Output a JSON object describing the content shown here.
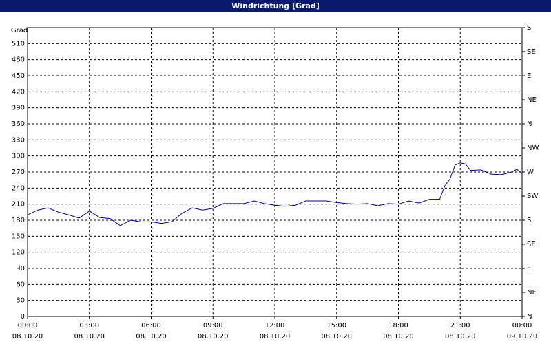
{
  "chart_data": {
    "type": "line",
    "title": "Windrichtung [Grad]",
    "y_label": "Grad",
    "x": [
      0,
      0.5,
      1,
      1.5,
      2,
      2.5,
      3,
      3.5,
      4,
      4.5,
      5,
      5.5,
      6,
      6.5,
      7,
      7.5,
      8,
      8.5,
      9,
      9.5,
      10,
      10.5,
      11,
      11.5,
      12,
      12.5,
      13,
      13.5,
      14,
      14.5,
      15,
      15.5,
      16,
      16.5,
      17,
      17.5,
      18,
      18.5,
      19,
      19.5,
      20,
      20.25,
      20.5,
      20.75,
      21,
      21.25,
      21.5,
      22,
      22.5,
      23,
      23.5,
      23.75,
      24
    ],
    "values": [
      190,
      199,
      203,
      195,
      190,
      184,
      197,
      185,
      183,
      170,
      180,
      177,
      177,
      174,
      177,
      193,
      203,
      199,
      202,
      211,
      211,
      211,
      216,
      211,
      208,
      206,
      208,
      216,
      216,
      216,
      213,
      211,
      210,
      211,
      207,
      211,
      210,
      216,
      212,
      219,
      219,
      244,
      257,
      283,
      287,
      285,
      273,
      274,
      266,
      265,
      270,
      275,
      267
    ],
    "color": "#00008b",
    "xlim": [
      0,
      24
    ],
    "xticks": [
      {
        "value": 0,
        "label": "00:00",
        "date": "08.10.20"
      },
      {
        "value": 3,
        "label": "03:00",
        "date": "08.10.20"
      },
      {
        "value": 6,
        "label": "06:00",
        "date": "08.10.20"
      },
      {
        "value": 9,
        "label": "09:00",
        "date": "08.10.20"
      },
      {
        "value": 12,
        "label": "12:00",
        "date": "08.10.20"
      },
      {
        "value": 15,
        "label": "15:00",
        "date": "08.10.20"
      },
      {
        "value": 18,
        "label": "18:00",
        "date": "08.10.20"
      },
      {
        "value": 21,
        "label": "21:00",
        "date": "08.10.20"
      },
      {
        "value": 24,
        "label": "00:00",
        "date": "09.10.20"
      }
    ],
    "ylim": [
      0,
      540
    ],
    "yticks": [
      0,
      30,
      60,
      90,
      120,
      150,
      180,
      210,
      240,
      270,
      300,
      330,
      360,
      390,
      420,
      450,
      480,
      510
    ],
    "y2lim": [
      0,
      540
    ],
    "y2ticks": [
      {
        "value": 0,
        "label": "N"
      },
      {
        "value": 45,
        "label": "NE"
      },
      {
        "value": 90,
        "label": "E"
      },
      {
        "value": 135,
        "label": "SE"
      },
      {
        "value": 180,
        "label": "S"
      },
      {
        "value": 225,
        "label": "SW"
      },
      {
        "value": 270,
        "label": "W"
      },
      {
        "value": 315,
        "label": "NW"
      },
      {
        "value": 360,
        "label": "N"
      },
      {
        "value": 405,
        "label": "NE"
      },
      {
        "value": 450,
        "label": "E"
      },
      {
        "value": 495,
        "label": "SE"
      },
      {
        "value": 540,
        "label": "S"
      }
    ],
    "grid": true
  }
}
